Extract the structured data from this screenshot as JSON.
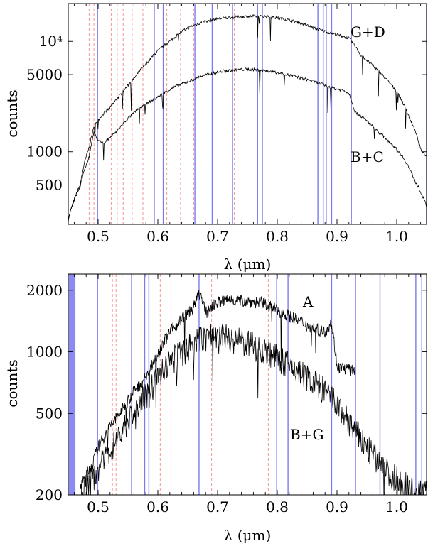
{
  "colors": {
    "solid_line": "#7b7bf0",
    "dashed_line": "#f4a0a0",
    "band": "#8a8af0",
    "spectrum": "#000000"
  },
  "chart_data": [
    {
      "type": "line",
      "xlabel": "λ (μm)",
      "ylabel": "counts",
      "xlim": [
        0.45,
        1.05
      ],
      "ylim": [
        220,
        22000
      ],
      "log_y": true,
      "grid": false,
      "x_ticks": [
        0.5,
        0.6,
        0.7,
        0.8,
        0.9,
        1.0
      ],
      "x_tick_labels": [
        "0.5",
        "0.6",
        "0.7",
        "0.8",
        "0.9",
        "1.0"
      ],
      "y_ticks": [
        500,
        1000,
        5000,
        10000
      ],
      "y_tick_labels": [
        "500",
        "1000",
        "5000",
        "10⁴"
      ],
      "solid_lines": [
        0.499,
        0.594,
        0.609,
        0.662,
        0.691,
        0.725,
        0.767,
        0.775,
        0.868,
        0.877,
        0.882,
        0.891,
        0.924,
        1.05
      ],
      "dashed_lines": [
        0.485,
        0.493,
        0.522,
        0.532,
        0.542,
        0.557,
        0.575,
        0.615,
        0.638,
        0.66,
        0.728
      ],
      "series": [
        {
          "name": "G+D",
          "x": [
            0.45,
            0.47,
            0.485,
            0.495,
            0.505,
            0.52,
            0.54,
            0.56,
            0.58,
            0.6,
            0.62,
            0.64,
            0.66,
            0.68,
            0.7,
            0.72,
            0.74,
            0.76,
            0.78,
            0.8,
            0.82,
            0.84,
            0.86,
            0.88,
            0.9,
            0.92,
            0.94,
            0.96,
            0.98,
            1.0,
            1.02,
            1.04,
            1.05
          ],
          "y": [
            240,
            500,
            1100,
            1800,
            2100,
            2500,
            3400,
            4600,
            6200,
            8200,
            10000,
            12300,
            14000,
            15200,
            16000,
            16400,
            16700,
            16900,
            16800,
            16300,
            15600,
            14600,
            13300,
            12300,
            11500,
            10700,
            7500,
            6000,
            4700,
            3500,
            2100,
            1050,
            900
          ]
        },
        {
          "name": "B+C",
          "x": [
            0.45,
            0.47,
            0.485,
            0.493,
            0.5,
            0.51,
            0.53,
            0.55,
            0.57,
            0.59,
            0.61,
            0.63,
            0.65,
            0.67,
            0.69,
            0.71,
            0.73,
            0.75,
            0.77,
            0.79,
            0.81,
            0.83,
            0.85,
            0.87,
            0.89,
            0.91,
            0.92,
            0.93,
            0.95,
            0.97,
            0.99,
            1.01,
            1.03,
            1.05
          ],
          "y": [
            250,
            480,
            900,
            1500,
            1250,
            1200,
            1500,
            2000,
            2500,
            2900,
            3400,
            3900,
            4300,
            4800,
            5100,
            5400,
            5500,
            5600,
            5500,
            5300,
            5100,
            4800,
            4500,
            4200,
            3800,
            3600,
            3400,
            2300,
            1900,
            1500,
            1200,
            900,
            550,
            320
          ]
        }
      ]
    },
    {
      "type": "line",
      "xlabel": "λ (μm)",
      "ylabel": "counts",
      "xlim": [
        0.45,
        1.05
      ],
      "ylim": [
        200,
        2400
      ],
      "log_y": true,
      "grid": false,
      "x_ticks": [
        0.5,
        0.6,
        0.7,
        0.8,
        0.9,
        1.0
      ],
      "x_tick_labels": [
        "0.5",
        "0.6",
        "0.7",
        "0.8",
        "0.9",
        "1.0"
      ],
      "y_ticks": [
        200,
        500,
        1000,
        2000
      ],
      "y_tick_labels": [
        "200",
        "500",
        "1000",
        "2000"
      ],
      "band": [
        0.451,
        0.462
      ],
      "solid_lines": [
        0.499,
        0.556,
        0.578,
        0.585,
        0.669,
        0.799,
        0.818,
        0.891,
        0.931,
        0.972,
        1.032,
        1.042
      ],
      "dashed_lines": [
        0.524,
        0.53,
        0.572,
        0.604,
        0.622,
        0.69,
        0.785
      ],
      "series": [
        {
          "name": "A",
          "x": [
            0.47,
            0.49,
            0.5,
            0.52,
            0.54,
            0.56,
            0.58,
            0.6,
            0.62,
            0.64,
            0.66,
            0.67,
            0.68,
            0.7,
            0.72,
            0.74,
            0.76,
            0.78,
            0.8,
            0.82,
            0.84,
            0.86,
            0.88,
            0.89,
            0.9,
            0.92,
            0.93
          ],
          "y": [
            220,
            280,
            340,
            430,
            520,
            640,
            750,
            980,
            1250,
            1450,
            1650,
            1950,
            1550,
            1750,
            1800,
            1780,
            1760,
            1720,
            1600,
            1500,
            1400,
            1300,
            1250,
            1400,
            850,
            820,
            800
          ]
        },
        {
          "name": "B+G",
          "x": [
            0.47,
            0.49,
            0.51,
            0.53,
            0.55,
            0.57,
            0.59,
            0.61,
            0.63,
            0.65,
            0.67,
            0.69,
            0.71,
            0.73,
            0.75,
            0.77,
            0.79,
            0.81,
            0.83,
            0.85,
            0.87,
            0.89,
            0.91,
            0.93,
            0.95,
            0.97,
            0.99,
            1.01,
            1.03,
            1.05
          ],
          "y": [
            200,
            240,
            300,
            370,
            460,
            560,
            680,
            820,
            950,
            1050,
            1150,
            1200,
            1200,
            1150,
            1100,
            1050,
            980,
            900,
            820,
            760,
            680,
            600,
            500,
            410,
            340,
            290,
            250,
            230,
            210,
            205
          ]
        }
      ]
    }
  ]
}
